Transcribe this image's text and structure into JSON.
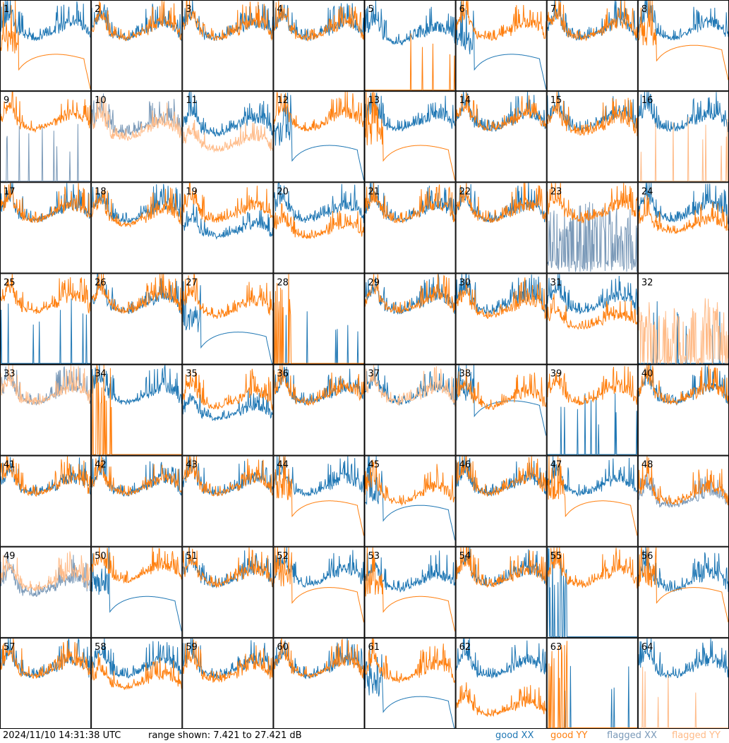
{
  "footer": {
    "timestamp": "2024/11/10 14:31:38 UTC",
    "range_text": "range shown: 7.421 to 27.421 dB"
  },
  "legend": [
    {
      "label": "good XX",
      "color": "#1f77b4"
    },
    {
      "label": "good YY",
      "color": "#ff7f0e"
    },
    {
      "label": "flagged XX",
      "color": "#7a99b8"
    },
    {
      "label": "flagged YY",
      "color": "#ffbb88"
    }
  ],
  "chart_data": {
    "type": "line",
    "y_range_db": [
      7.421,
      27.421
    ],
    "grid": {
      "rows": 8,
      "cols": 8
    },
    "panels": [
      {
        "id": 1,
        "xx": {
          "state": "good",
          "shape": "normal",
          "level": 21
        },
        "yy": {
          "state": "good",
          "shape": "dropout",
          "level": 14
        }
      },
      {
        "id": 2,
        "xx": {
          "state": "good",
          "shape": "normal",
          "level": 21
        },
        "yy": {
          "state": "good",
          "shape": "normal",
          "level": 21
        }
      },
      {
        "id": 3,
        "xx": {
          "state": "good",
          "shape": "normal",
          "level": 21
        },
        "yy": {
          "state": "good",
          "shape": "normal",
          "level": 21
        }
      },
      {
        "id": 4,
        "xx": {
          "state": "good",
          "shape": "normal",
          "level": 21
        },
        "yy": {
          "state": "good",
          "shape": "normal",
          "level": 21
        }
      },
      {
        "id": 5,
        "xx": {
          "state": "good",
          "shape": "normal",
          "level": 20
        },
        "yy": {
          "state": "good",
          "shape": "dead",
          "level": 8
        }
      },
      {
        "id": 6,
        "xx": {
          "state": "good",
          "shape": "dropout",
          "level": 14
        },
        "yy": {
          "state": "good",
          "shape": "normal",
          "level": 21
        }
      },
      {
        "id": 7,
        "xx": {
          "state": "good",
          "shape": "normal",
          "level": 21
        },
        "yy": {
          "state": "good",
          "shape": "normal",
          "level": 21
        }
      },
      {
        "id": 8,
        "xx": {
          "state": "good",
          "shape": "normal",
          "level": 21
        },
        "yy": {
          "state": "good",
          "shape": "dropout",
          "level": 16
        }
      },
      {
        "id": 9,
        "xx": {
          "state": "flagged",
          "shape": "dead",
          "level": 8
        },
        "yy": {
          "state": "good",
          "shape": "normal",
          "level": 21
        }
      },
      {
        "id": 10,
        "xx": {
          "state": "flagged",
          "shape": "normal",
          "level": 20
        },
        "yy": {
          "state": "flagged",
          "shape": "normal",
          "level": 19
        }
      },
      {
        "id": 11,
        "xx": {
          "state": "good",
          "shape": "normal",
          "level": 20
        },
        "yy": {
          "state": "flagged",
          "shape": "low",
          "level": 16
        }
      },
      {
        "id": 12,
        "xx": {
          "state": "good",
          "shape": "dropout",
          "level": 14
        },
        "yy": {
          "state": "good",
          "shape": "normal",
          "level": 21
        }
      },
      {
        "id": 13,
        "xx": {
          "state": "good",
          "shape": "normal",
          "level": 21
        },
        "yy": {
          "state": "good",
          "shape": "dropout",
          "level": 14
        }
      },
      {
        "id": 14,
        "xx": {
          "state": "good",
          "shape": "normal",
          "level": 21
        },
        "yy": {
          "state": "good",
          "shape": "normal",
          "level": 21
        }
      },
      {
        "id": 15,
        "xx": {
          "state": "good",
          "shape": "normal",
          "level": 21
        },
        "yy": {
          "state": "good",
          "shape": "normal",
          "level": 20
        }
      },
      {
        "id": 16,
        "xx": {
          "state": "good",
          "shape": "normal",
          "level": 21
        },
        "yy": {
          "state": "flagged",
          "shape": "dead",
          "level": 8
        }
      },
      {
        "id": 17,
        "xx": {
          "state": "good",
          "shape": "normal",
          "level": 21
        },
        "yy": {
          "state": "good",
          "shape": "normal",
          "level": 21
        }
      },
      {
        "id": 18,
        "xx": {
          "state": "good",
          "shape": "normal",
          "level": 21
        },
        "yy": {
          "state": "good",
          "shape": "normal",
          "level": 20
        }
      },
      {
        "id": 19,
        "xx": {
          "state": "good",
          "shape": "low",
          "level": 17
        },
        "yy": {
          "state": "good",
          "shape": "normal",
          "level": 21
        }
      },
      {
        "id": 20,
        "xx": {
          "state": "good",
          "shape": "normal",
          "level": 21
        },
        "yy": {
          "state": "good",
          "shape": "low",
          "level": 17
        }
      },
      {
        "id": 21,
        "xx": {
          "state": "good",
          "shape": "normal",
          "level": 21
        },
        "yy": {
          "state": "good",
          "shape": "normal",
          "level": 21
        }
      },
      {
        "id": 22,
        "xx": {
          "state": "good",
          "shape": "normal",
          "level": 21
        },
        "yy": {
          "state": "good",
          "shape": "normal",
          "level": 21
        }
      },
      {
        "id": 23,
        "xx": {
          "state": "flagged",
          "shape": "noisy",
          "level": 14
        },
        "yy": {
          "state": "good",
          "shape": "normal",
          "level": 21
        }
      },
      {
        "id": 24,
        "xx": {
          "state": "good",
          "shape": "normal",
          "level": 21
        },
        "yy": {
          "state": "good",
          "shape": "low",
          "level": 18
        }
      },
      {
        "id": 25,
        "xx": {
          "state": "good",
          "shape": "dead",
          "level": 8
        },
        "yy": {
          "state": "good",
          "shape": "normal",
          "level": 21
        }
      },
      {
        "id": 26,
        "xx": {
          "state": "good",
          "shape": "normal",
          "level": 21
        },
        "yy": {
          "state": "good",
          "shape": "normal",
          "level": 21
        }
      },
      {
        "id": 27,
        "xx": {
          "state": "good",
          "shape": "dropout",
          "level": 13
        },
        "yy": {
          "state": "good",
          "shape": "normal",
          "level": 20
        }
      },
      {
        "id": 28,
        "xx": {
          "state": "good",
          "shape": "dead",
          "level": 7.5
        },
        "yy": {
          "state": "good",
          "shape": "burst",
          "level": 8
        }
      },
      {
        "id": 29,
        "xx": {
          "state": "good",
          "shape": "normal",
          "level": 21
        },
        "yy": {
          "state": "good",
          "shape": "normal",
          "level": 21
        }
      },
      {
        "id": 30,
        "xx": {
          "state": "good",
          "shape": "normal",
          "level": 21
        },
        "yy": {
          "state": "good",
          "shape": "normal",
          "level": 20
        }
      },
      {
        "id": 31,
        "xx": {
          "state": "good",
          "shape": "normal",
          "level": 21
        },
        "yy": {
          "state": "good",
          "shape": "low",
          "level": 17
        }
      },
      {
        "id": 32,
        "xx": {
          "state": "good",
          "shape": "dead",
          "level": 8
        },
        "yy": {
          "state": "flagged",
          "shape": "noisy",
          "level": 13
        }
      },
      {
        "id": 33,
        "xx": {
          "state": "flagged",
          "shape": "normal",
          "level": 21
        },
        "yy": {
          "state": "flagged",
          "shape": "normal",
          "level": 21
        }
      },
      {
        "id": 34,
        "xx": {
          "state": "good",
          "shape": "normal",
          "level": 21
        },
        "yy": {
          "state": "good",
          "shape": "burst",
          "level": 8
        }
      },
      {
        "id": 35,
        "xx": {
          "state": "good",
          "shape": "low",
          "level": 17
        },
        "yy": {
          "state": "good",
          "shape": "normal",
          "level": 20
        }
      },
      {
        "id": 36,
        "xx": {
          "state": "good",
          "shape": "normal",
          "level": 21
        },
        "yy": {
          "state": "good",
          "shape": "normal",
          "level": 21
        }
      },
      {
        "id": 37,
        "xx": {
          "state": "good",
          "shape": "normal",
          "level": 21
        },
        "yy": {
          "state": "flagged",
          "shape": "normal",
          "level": 21
        }
      },
      {
        "id": 38,
        "xx": {
          "state": "good",
          "shape": "dropout",
          "level": 18
        },
        "yy": {
          "state": "good",
          "shape": "normal",
          "level": 20
        }
      },
      {
        "id": 39,
        "xx": {
          "state": "good",
          "shape": "dead",
          "level": 8
        },
        "yy": {
          "state": "good",
          "shape": "normal",
          "level": 21
        }
      },
      {
        "id": 40,
        "xx": {
          "state": "good",
          "shape": "normal",
          "level": 21
        },
        "yy": {
          "state": "good",
          "shape": "normal",
          "level": 21
        }
      },
      {
        "id": 41,
        "xx": {
          "state": "good",
          "shape": "normal",
          "level": 21
        },
        "yy": {
          "state": "good",
          "shape": "normal",
          "level": 21
        }
      },
      {
        "id": 42,
        "xx": {
          "state": "good",
          "shape": "normal",
          "level": 21
        },
        "yy": {
          "state": "good",
          "shape": "normal",
          "level": 21
        }
      },
      {
        "id": 43,
        "xx": {
          "state": "good",
          "shape": "normal",
          "level": 21
        },
        "yy": {
          "state": "good",
          "shape": "normal",
          "level": 21
        }
      },
      {
        "id": 44,
        "xx": {
          "state": "good",
          "shape": "normal",
          "level": 21
        },
        "yy": {
          "state": "good",
          "shape": "dropout",
          "level": 16
        }
      },
      {
        "id": 45,
        "xx": {
          "state": "good",
          "shape": "dropout",
          "level": 15
        },
        "yy": {
          "state": "good",
          "shape": "normal",
          "level": 19
        }
      },
      {
        "id": 46,
        "xx": {
          "state": "good",
          "shape": "normal",
          "level": 21
        },
        "yy": {
          "state": "good",
          "shape": "normal",
          "level": 21
        }
      },
      {
        "id": 47,
        "xx": {
          "state": "good",
          "shape": "normal",
          "level": 21
        },
        "yy": {
          "state": "good",
          "shape": "dropout",
          "level": 16
        }
      },
      {
        "id": 48,
        "xx": {
          "state": "flagged",
          "shape": "low",
          "level": 18
        },
        "yy": {
          "state": "good",
          "shape": "normal",
          "level": 19
        }
      },
      {
        "id": 49,
        "xx": {
          "state": "flagged",
          "shape": "normal",
          "level": 19
        },
        "yy": {
          "state": "flagged",
          "shape": "normal",
          "level": 20
        }
      },
      {
        "id": 50,
        "xx": {
          "state": "good",
          "shape": "dropout",
          "level": 15
        },
        "yy": {
          "state": "good",
          "shape": "normal",
          "level": 22
        }
      },
      {
        "id": 51,
        "xx": {
          "state": "good",
          "shape": "normal",
          "level": 21
        },
        "yy": {
          "state": "good",
          "shape": "normal",
          "level": 21
        }
      },
      {
        "id": 52,
        "xx": {
          "state": "good",
          "shape": "normal",
          "level": 21
        },
        "yy": {
          "state": "good",
          "shape": "dropout",
          "level": 17
        }
      },
      {
        "id": 53,
        "xx": {
          "state": "good",
          "shape": "normal",
          "level": 20
        },
        "yy": {
          "state": "good",
          "shape": "dropout",
          "level": 15
        }
      },
      {
        "id": 54,
        "xx": {
          "state": "good",
          "shape": "normal",
          "level": 21
        },
        "yy": {
          "state": "good",
          "shape": "normal",
          "level": 21
        }
      },
      {
        "id": 55,
        "xx": {
          "state": "good",
          "shape": "burst",
          "level": 8
        },
        "yy": {
          "state": "good",
          "shape": "normal",
          "level": 21
        }
      },
      {
        "id": 56,
        "xx": {
          "state": "good",
          "shape": "normal",
          "level": 20
        },
        "yy": {
          "state": "good",
          "shape": "dropout",
          "level": 17
        }
      },
      {
        "id": 57,
        "xx": {
          "state": "good",
          "shape": "normal",
          "level": 21
        },
        "yy": {
          "state": "good",
          "shape": "normal",
          "level": 21
        }
      },
      {
        "id": 58,
        "xx": {
          "state": "good",
          "shape": "normal",
          "level": 21
        },
        "yy": {
          "state": "good",
          "shape": "low",
          "level": 18
        }
      },
      {
        "id": 59,
        "xx": {
          "state": "good",
          "shape": "normal",
          "level": 21
        },
        "yy": {
          "state": "good",
          "shape": "normal",
          "level": 20
        }
      },
      {
        "id": 60,
        "xx": {
          "state": "good",
          "shape": "normal",
          "level": 21
        },
        "yy": {
          "state": "good",
          "shape": "normal",
          "level": 21
        }
      },
      {
        "id": 61,
        "xx": {
          "state": "good",
          "shape": "dropout",
          "level": 13
        },
        "yy": {
          "state": "good",
          "shape": "normal",
          "level": 20
        }
      },
      {
        "id": 62,
        "xx": {
          "state": "good",
          "shape": "normal",
          "level": 21
        },
        "yy": {
          "state": "good",
          "shape": "low",
          "level": 12
        }
      },
      {
        "id": 63,
        "xx": {
          "state": "good",
          "shape": "dead",
          "level": 7.5
        },
        "yy": {
          "state": "good",
          "shape": "burst",
          "level": 8
        }
      },
      {
        "id": 64,
        "xx": {
          "state": "good",
          "shape": "normal",
          "level": 21
        },
        "yy": {
          "state": "flagged",
          "shape": "dead",
          "level": 8
        }
      }
    ]
  }
}
